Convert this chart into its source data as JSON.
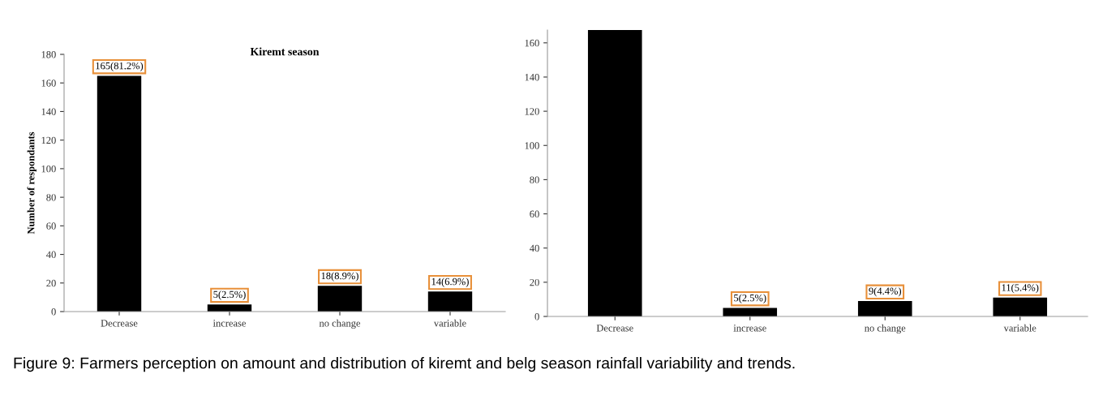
{
  "chart_data": [
    {
      "type": "bar",
      "title": "Kiremt season",
      "ylabel": "Number of respondants",
      "categories": [
        "Decrease",
        "increase",
        "no change",
        "variable"
      ],
      "values": [
        165,
        5,
        18,
        14
      ],
      "color": "#000000",
      "value_labels": [
        "165(81.2%)",
        "5(2.5%)",
        "18(8.9%)",
        "14(6.9%)"
      ],
      "ylim": [
        0,
        180
      ],
      "yticks": [
        0,
        20,
        40,
        60,
        80,
        100,
        120,
        140,
        160,
        180
      ],
      "grid": false,
      "legend": false
    },
    {
      "type": "bar",
      "categories": [
        "Decrease",
        "increase",
        "no change",
        "variable"
      ],
      "values": [
        167.5,
        5,
        9,
        11
      ],
      "color": "#000000",
      "value_labels": [
        null,
        "5(2.5%)",
        "9(4.4%)",
        "11(5.4%)"
      ],
      "ylim": [
        0,
        167.5
      ],
      "yticks": [
        0,
        20,
        40,
        60,
        80,
        100,
        120,
        140,
        160
      ],
      "grid": false,
      "legend": false,
      "annotations": [
        "Figure 9: Farmers perception on amount and distribution of kiremt and belg season rainfall variability and trends."
      ]
    }
  ]
}
